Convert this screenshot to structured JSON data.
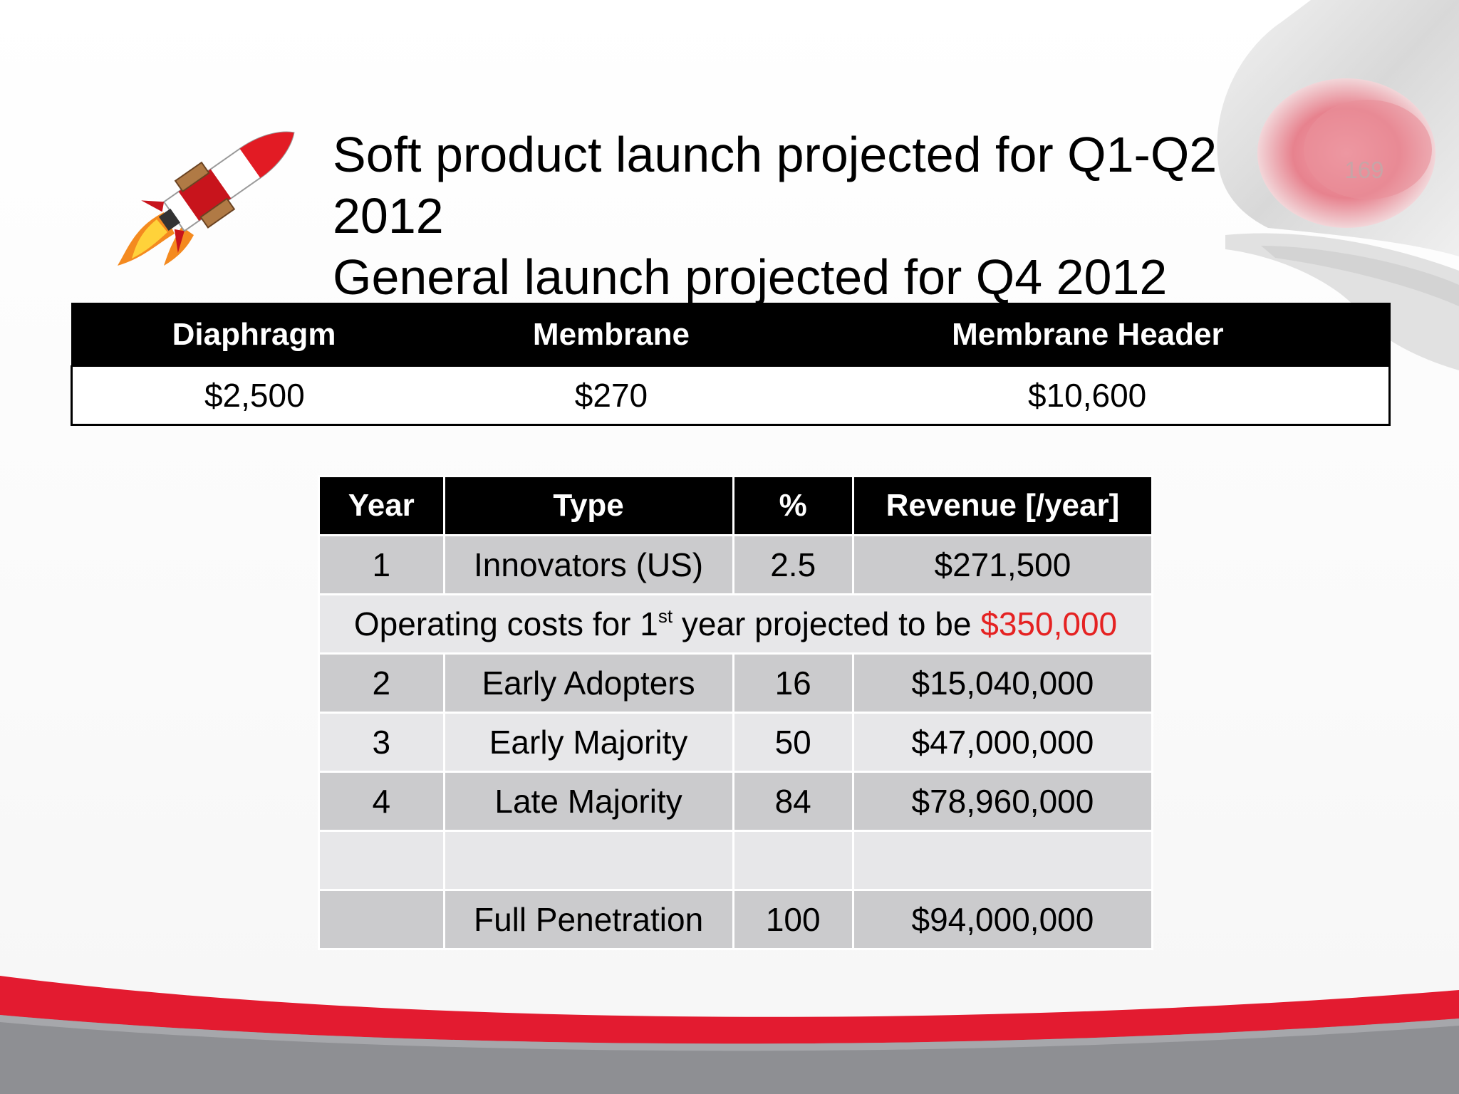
{
  "slide": {
    "page_number": "169",
    "title_lines": [
      "Soft product launch projected for Q1-Q2",
      "2012",
      "General launch projected for Q4 2012"
    ],
    "colors": {
      "accent_red": "#e31b30",
      "footer_gray": "#8e8f93",
      "table_header": "#000000",
      "row_dark": "#cbcbcd",
      "row_light": "#e7e7e9",
      "highlight_red": "#e52222"
    },
    "icons": [
      "rocket-icon",
      "brand-logo-s"
    ]
  },
  "price_table": {
    "headers": [
      "Diaphragm",
      "Membrane",
      "Membrane Header"
    ],
    "values": [
      "$2,500",
      "$270",
      "$10,600"
    ]
  },
  "adoption_table": {
    "headers": [
      "Year",
      "Type",
      "%",
      "Revenue [/year]"
    ],
    "rows": [
      {
        "year": "1",
        "type": "Innovators (US)",
        "pct": "2.5",
        "revenue": "$271,500"
      },
      {
        "year": "2",
        "type": "Early Adopters",
        "pct": "16",
        "revenue": "$15,040,000"
      },
      {
        "year": "3",
        "type": "Early Majority",
        "pct": "50",
        "revenue": "$47,000,000"
      },
      {
        "year": "4",
        "type": "Late Majority",
        "pct": "84",
        "revenue": "$78,960,000"
      },
      {
        "year": "",
        "type": "",
        "pct": "",
        "revenue": ""
      },
      {
        "year": "",
        "type": "Full Penetration",
        "pct": "100",
        "revenue": "$94,000,000"
      }
    ],
    "operating_costs": {
      "prefix": "Operating costs for 1",
      "superscript": "st",
      "middle": " year projected to be ",
      "amount": "$350,000"
    }
  }
}
